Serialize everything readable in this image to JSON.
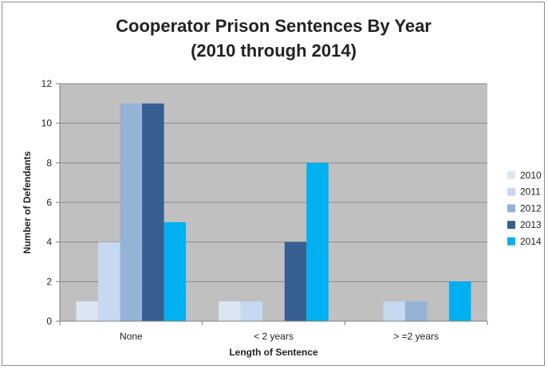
{
  "chart_data": {
    "type": "bar",
    "title": "Cooperator Prison Sentences By Year",
    "subtitle": "(2010 through 2014)",
    "xlabel": "Length of Sentence",
    "ylabel": "Number of Defendants",
    "categories": [
      "None",
      "< 2 years",
      "> =2 years"
    ],
    "series": [
      {
        "name": "2010",
        "color": "#dce6f2",
        "values": [
          1,
          1,
          0
        ]
      },
      {
        "name": "2011",
        "color": "#c6d9f1",
        "values": [
          4,
          1,
          1
        ]
      },
      {
        "name": "2012",
        "color": "#95b3d7",
        "values": [
          11,
          0,
          1
        ]
      },
      {
        "name": "2013",
        "color": "#366092",
        "values": [
          11,
          4,
          0
        ]
      },
      {
        "name": "2014",
        "color": "#00b0f0",
        "values": [
          5,
          8,
          2
        ]
      }
    ],
    "ylim": [
      0,
      12
    ],
    "yticks": [
      0,
      2,
      4,
      6,
      8,
      10,
      12
    ],
    "grid": true,
    "legend": "right",
    "plot_background": "#c0c0c0"
  }
}
